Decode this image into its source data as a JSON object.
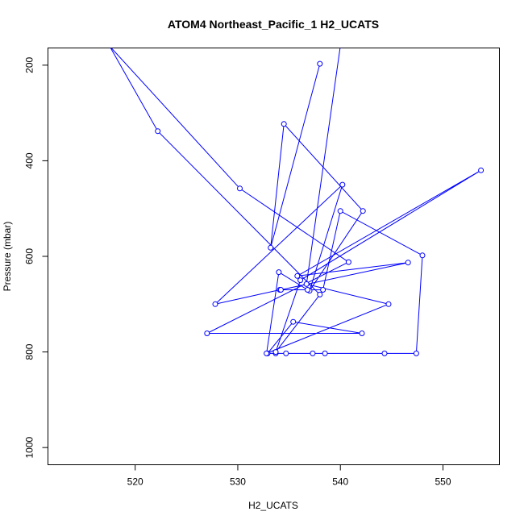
{
  "chart_data": {
    "type": "line",
    "title": "ATOM4 Northeast_Pacific_1 H2_UCATS",
    "xlabel": "H2_UCATS",
    "ylabel": "Pressure (mbar)",
    "xlim": [
      511.5,
      555.5
    ],
    "ylim": [
      1036,
      164
    ],
    "y_reversed": true,
    "grid": false,
    "legend": "none",
    "x_ticks": [
      520,
      530,
      540,
      550
    ],
    "y_ticks": [
      200,
      400,
      600,
      800,
      1000
    ],
    "colors": {
      "series": "#0000ff"
    },
    "series": [
      {
        "x": [
          538.0,
          533.2,
          534.5,
          542.2,
          537.0,
          540.2,
          527.8,
          534.1,
          538.3,
          540.0,
          548.0,
          547.4,
          544.3,
          538.5,
          537.3,
          534.7,
          533.7,
          532.9,
          535.4,
          542.1,
          527.0,
          540.8,
          530.2,
          517.5,
          522.2,
          538.0,
          533.7,
          536.1,
          553.7,
          535.8,
          546.6,
          534.2,
          536.8,
          534.0,
          532.8,
          544.7,
          536.7,
          540.0
        ],
        "y": [
          197,
          582,
          323,
          505,
          672,
          450,
          700,
          670,
          670,
          505,
          598,
          803,
          803,
          803,
          803,
          803,
          803,
          803,
          737,
          761,
          761,
          612,
          458,
          160,
          338,
          680,
          800,
          650,
          420,
          641,
          613,
          670,
          670,
          633,
          803,
          700,
          658,
          160
        ]
      }
    ]
  }
}
